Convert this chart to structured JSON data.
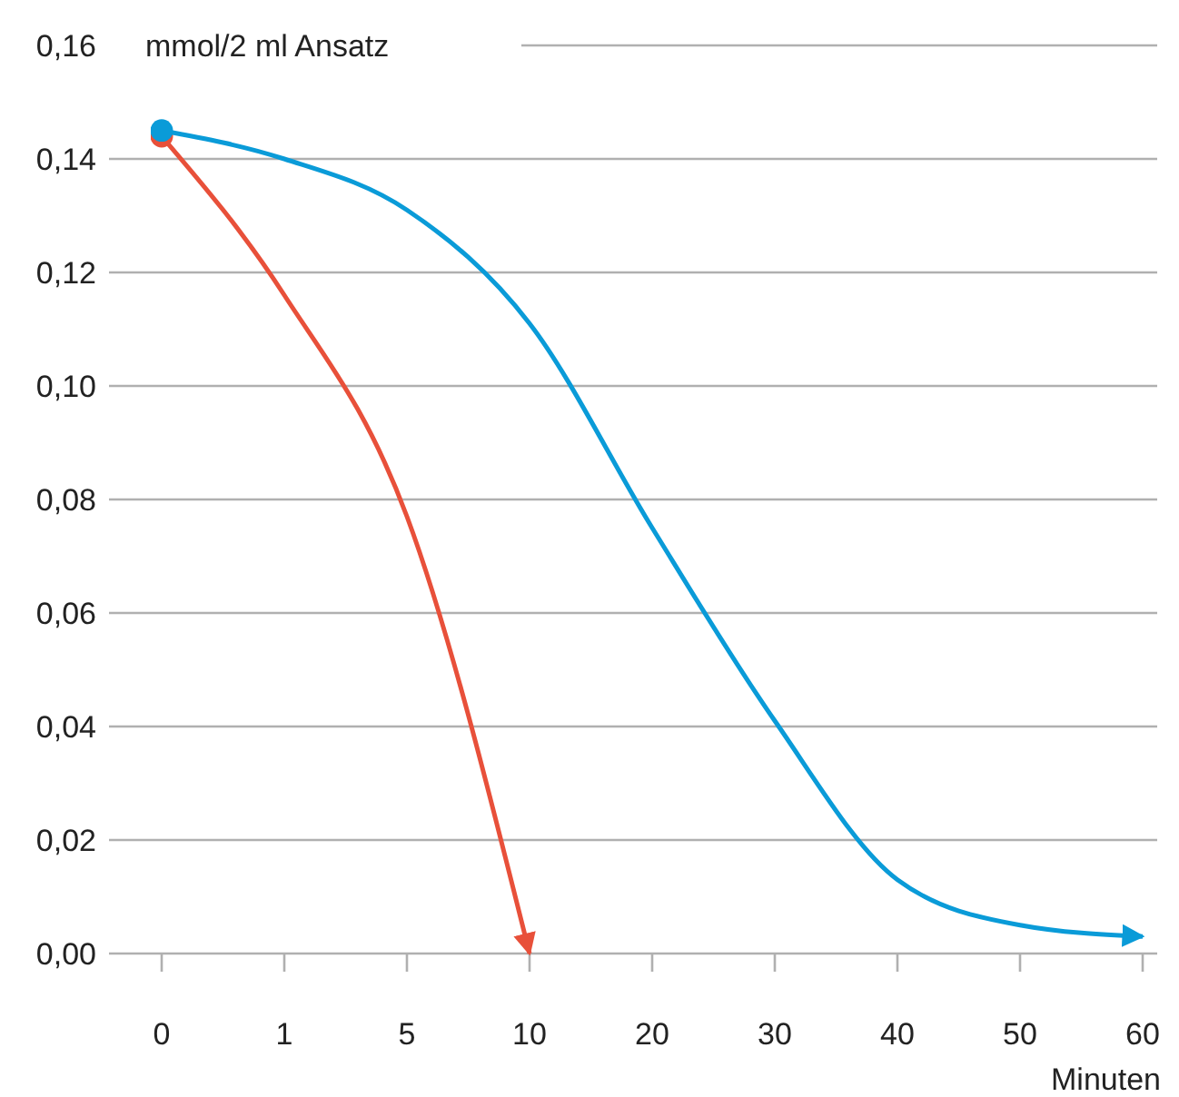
{
  "chart_data": {
    "type": "line",
    "ylabel": "mmol/2 ml Ansatz",
    "xlabel": "Minuten",
    "categories": [
      "0",
      "1",
      "5",
      "10",
      "20",
      "30",
      "40",
      "50",
      "60"
    ],
    "series": [
      {
        "color": "#e8503a",
        "values": [
          0.144,
          0.116,
          0.077,
          0,
          null,
          null,
          null,
          null,
          null
        ]
      },
      {
        "color": "#0a9bd8",
        "values": [
          0.145,
          0.14,
          0.131,
          0.111,
          0.075,
          0.041,
          0.013,
          0.005,
          0.003
        ]
      }
    ],
    "ylim": [
      0,
      0.16
    ],
    "yticks": [
      {
        "value": 0,
        "label": "0,00"
      },
      {
        "value": 0.02,
        "label": "0,02"
      },
      {
        "value": 0.04,
        "label": "0,04"
      },
      {
        "value": 0.06,
        "label": "0,06"
      },
      {
        "value": 0.08,
        "label": "0,08"
      },
      {
        "value": 0.1,
        "label": "0,10"
      },
      {
        "value": 0.12,
        "label": "0,12"
      },
      {
        "value": 0.14,
        "label": "0,14"
      },
      {
        "value": 0.16,
        "label": "0,16"
      }
    ],
    "grid": "y"
  }
}
